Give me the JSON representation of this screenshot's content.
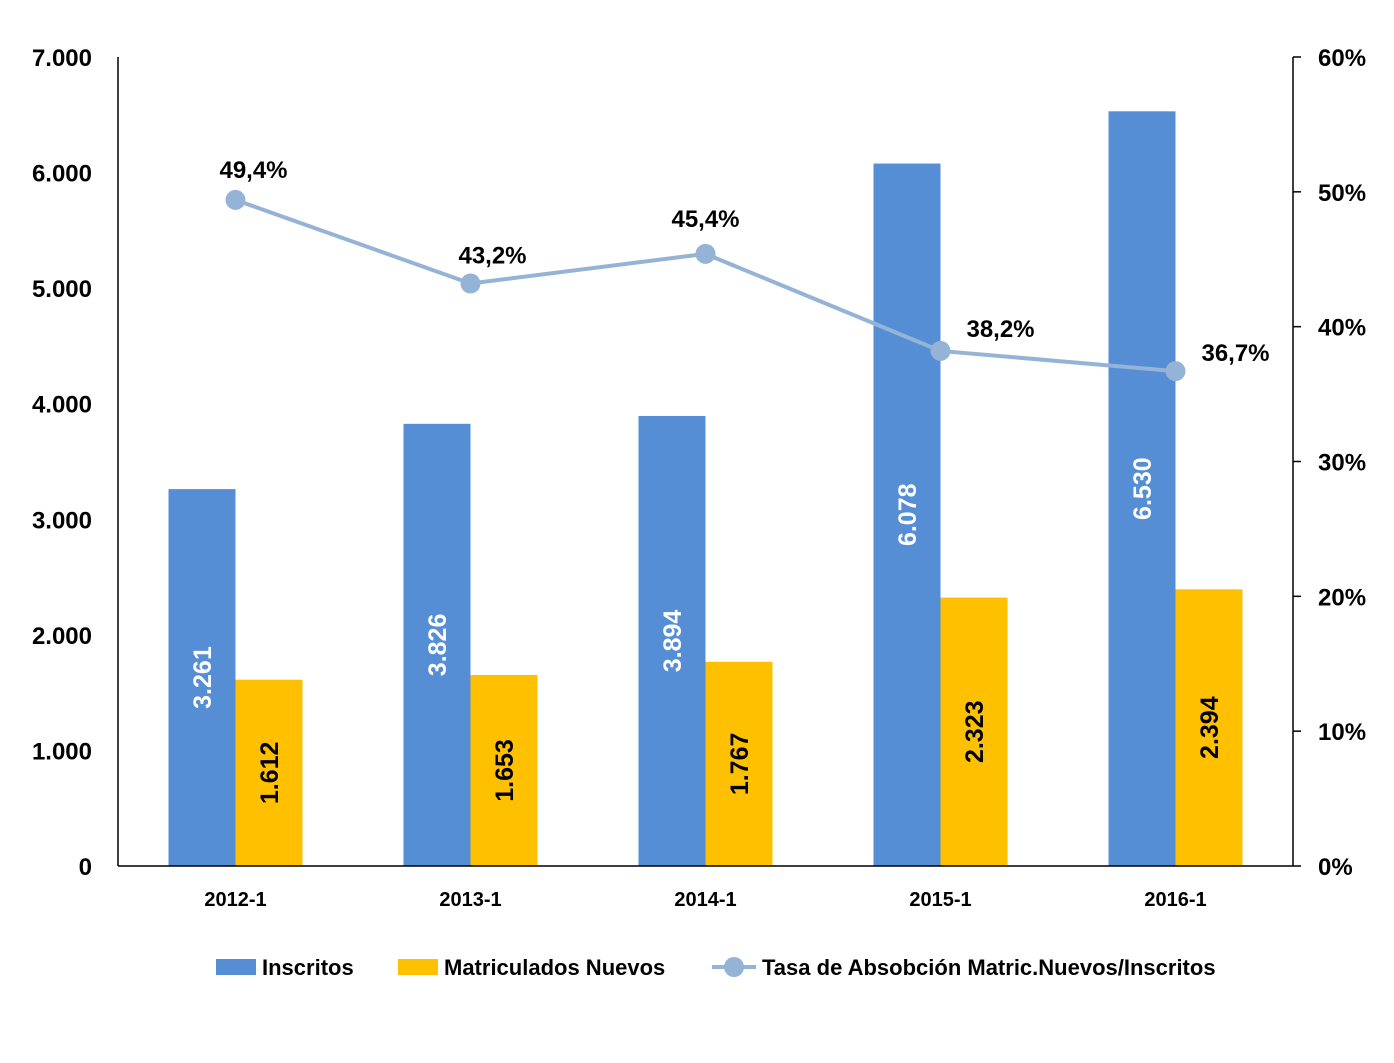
{
  "chart_data": {
    "type": "bar",
    "categories": [
      "2012-1",
      "2013-1",
      "2014-1",
      "2015-1",
      "2016-1"
    ],
    "series": [
      {
        "name": "Inscritos",
        "kind": "bar",
        "axis": "left",
        "color": "#558ED5",
        "values": [
          3261,
          3826,
          3894,
          6078,
          6530
        ],
        "labels": [
          "3.261",
          "3.826",
          "3.894",
          "6.078",
          "6.530"
        ],
        "label_color": "#ffffff"
      },
      {
        "name": "Matriculados Nuevos",
        "kind": "bar",
        "axis": "left",
        "color": "#FFC000",
        "values": [
          1612,
          1653,
          1767,
          2323,
          2394
        ],
        "labels": [
          "1.612",
          "1.653",
          "1.767",
          "2.323",
          "2.394"
        ],
        "label_color": "#000000"
      },
      {
        "name": "Tasa de Absobción Matric.Nuevos/Inscritos",
        "kind": "line",
        "axis": "right",
        "color": "#95B3D7",
        "values": [
          49.4,
          43.2,
          45.4,
          38.2,
          36.7
        ],
        "labels": [
          "49,4%",
          "43,2%",
          "45,4%",
          "38,2%",
          "36,7%"
        ]
      }
    ],
    "y_left": {
      "ylim": [
        0,
        7000
      ],
      "ticks": [
        "0",
        "1.000",
        "2.000",
        "3.000",
        "4.000",
        "5.000",
        "6.000",
        "7.000"
      ]
    },
    "y_right": {
      "ylim": [
        0,
        60
      ],
      "ticks": [
        "0%",
        "10%",
        "20%",
        "30%",
        "40%",
        "50%",
        "60%"
      ]
    },
    "grid": false,
    "legend_position": "bottom"
  }
}
